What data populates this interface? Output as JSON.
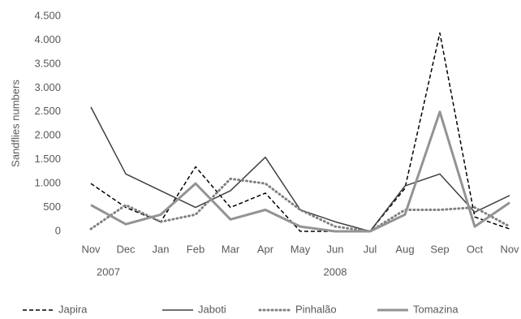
{
  "chart_data": {
    "type": "line",
    "y_label": "Sandflies numbers",
    "categories": [
      "Nov",
      "Dec",
      "Jan",
      "Feb",
      "Mar",
      "Apr",
      "May",
      "Jun",
      "Jul",
      "Aug",
      "Sep",
      "Oct",
      "Nov"
    ],
    "years": [
      "2007",
      "2008"
    ],
    "ylim": [
      0,
      4500
    ],
    "yticks": [
      0,
      {
        "value": 500,
        "label": "500"
      },
      {
        "value": 1000,
        "label": "1.000"
      },
      {
        "value": 1500,
        "label": "1.500"
      },
      {
        "value": 2000,
        "label": "2.000"
      },
      {
        "value": 2500,
        "label": "2.500"
      },
      {
        "value": 3000,
        "label": "3.000"
      },
      {
        "value": 3500,
        "label": "3.500"
      },
      {
        "value": 4000,
        "label": "4.000"
      },
      {
        "value": 4500,
        "label": "4.500"
      }
    ],
    "grid": false,
    "legend": "bottom",
    "series": [
      {
        "name": "Japira",
        "color": "#000000",
        "dash": "dashed",
        "values": [
          1000,
          500,
          200,
          1350,
          500,
          800,
          0,
          0,
          0,
          900,
          4150,
          300,
          50
        ]
      },
      {
        "name": "Jaboti",
        "color": "#404040",
        "dash": "solid",
        "values": [
          2600,
          1200,
          850,
          500,
          850,
          1550,
          450,
          200,
          0,
          950,
          1200,
          400,
          750
        ]
      },
      {
        "name": "Pinhalão",
        "color": "#808080",
        "dash": "dotted",
        "values": [
          50,
          550,
          200,
          350,
          1100,
          1000,
          450,
          100,
          0,
          450,
          450,
          500,
          100
        ]
      },
      {
        "name": "Tomazina",
        "color": "#939393",
        "dash": "thick",
        "values": [
          550,
          150,
          350,
          1000,
          250,
          450,
          100,
          0,
          0,
          350,
          2500,
          100,
          600
        ]
      }
    ]
  }
}
